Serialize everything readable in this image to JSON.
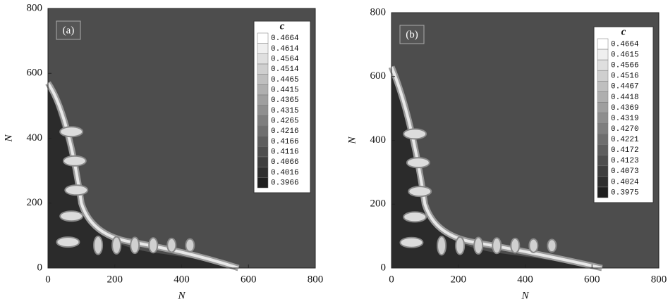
{
  "chart_data": [
    {
      "type": "image",
      "label": "(a)",
      "xlabel": "N",
      "ylabel": "N",
      "xlim": [
        0,
        800
      ],
      "ylim": [
        0,
        800
      ],
      "xticks": [
        0,
        200,
        400,
        600,
        800
      ],
      "yticks": [
        0,
        200,
        400,
        600,
        800
      ],
      "colorbar_title": "c",
      "colorbar_ticks": [
        0.4664,
        0.4614,
        0.4564,
        0.4514,
        0.4465,
        0.4415,
        0.4365,
        0.4315,
        0.4265,
        0.4216,
        0.4166,
        0.4116,
        0.4066,
        0.4016,
        0.3966
      ]
    },
    {
      "type": "image",
      "label": "(b)",
      "xlabel": "N",
      "ylabel": "N",
      "xlim": [
        0,
        800
      ],
      "ylim": [
        0,
        800
      ],
      "xticks": [
        0,
        200,
        400,
        600,
        800
      ],
      "yticks": [
        0,
        200,
        400,
        600,
        800
      ],
      "colorbar_title": "c",
      "colorbar_ticks": [
        0.4664,
        0.4615,
        0.4566,
        0.4516,
        0.4467,
        0.4418,
        0.4369,
        0.4319,
        {
          "value": 0.427,
          "label": "0.4270"
        },
        0.4221,
        0.4172,
        0.4123,
        0.4073,
        0.4024,
        0.3975
      ]
    }
  ]
}
